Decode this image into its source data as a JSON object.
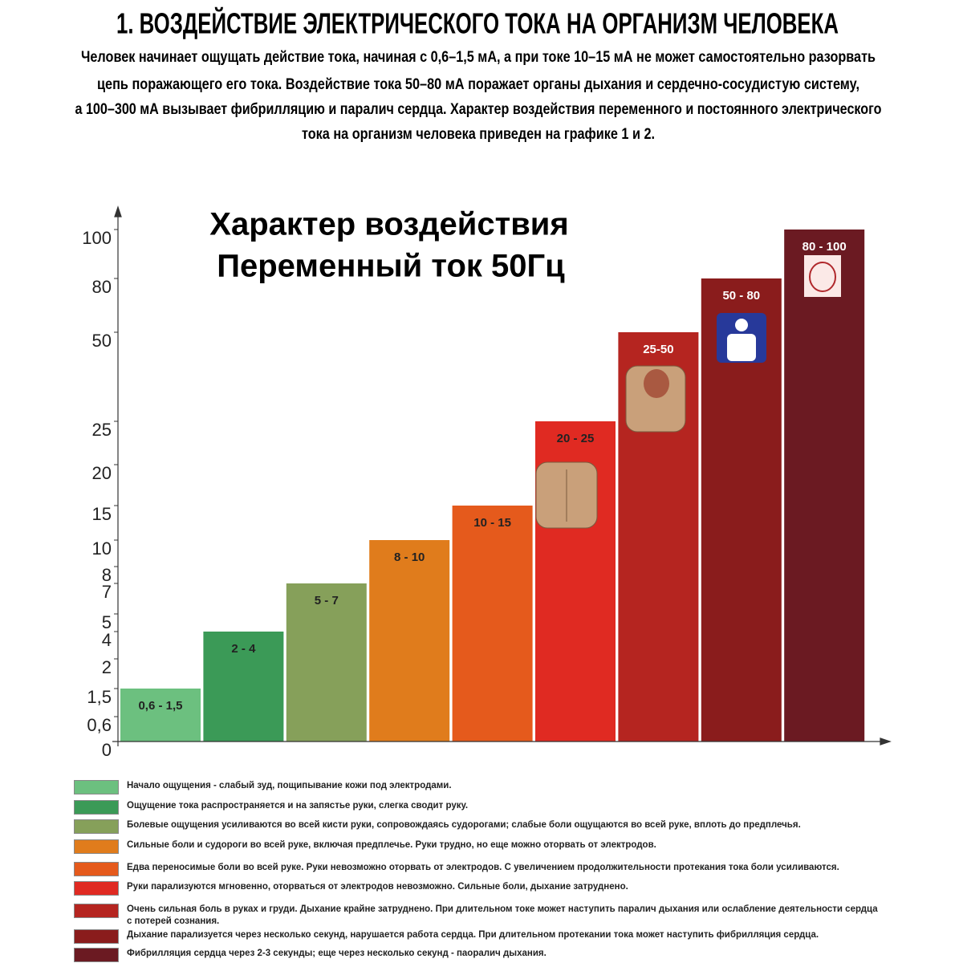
{
  "header": {
    "title": "1. ВОЗДЕЙСТВИЕ ЭЛЕКТРИЧЕСКОГО ТОКА НА ОРГАНИЗМ ЧЕЛОВЕКА",
    "lines": [
      "Человек начинает ощущать действие тока, начиная с 0,6–1,5 мА, а при токе 10–15 мА не может самостоятельно разорвать",
      "цепь поражающего его тока. Воздействие тока 50–80 мА поражает органы дыхания и сердечно-сосудистую систему,",
      "а 100–300 мА вызывает фибрилляцию и паралич сердца. Характер воздействия переменного и постоянного электрического",
      "тока на организм человека приведен на графике 1 и 2."
    ]
  },
  "chart_data": {
    "type": "bar",
    "title": [
      "Характер воздействия",
      "Переменный ток 50Гц"
    ],
    "categories": [
      "0,6 - 1,5",
      "2 - 4",
      "5 - 7",
      "8 - 10",
      "10 - 15",
      "20 - 25",
      "25-50",
      "50 - 80",
      "80 - 100"
    ],
    "values": [
      1.5,
      4,
      7,
      10,
      15,
      25,
      50,
      80,
      100
    ],
    "colors": [
      "#6cc07f",
      "#3b9a57",
      "#86a05a",
      "#e07c1c",
      "#e55a1c",
      "#e02a22",
      "#b52520",
      "#8a1c1c",
      "#6b1a22"
    ],
    "ylim": [
      0,
      100
    ],
    "yticks": [
      0,
      {
        "value": 0.6,
        "label": "0,6"
      },
      {
        "value": 1.5,
        "label": "1,5"
      },
      2,
      4,
      5,
      7,
      8,
      10,
      15,
      20,
      25,
      50,
      80,
      100
    ],
    "legend": [
      "Начало ощущения -  слабый зуд, пощипывание кожи под электродами.",
      "Ощущение тока распространяется и на запястье руки, слегка сводит руку.",
      "Болевые ощущения усиливаются во всей кисти руки, сопровождаясь судорогами; слабые боли ощущаются во всей руке, вплоть до предплечья.",
      "Сильные боли и судороги во всей руке, включая предплечье. Руки трудно, но еще можно оторвать от электродов.",
      "Едва переносимые боли во всей руке. Руки невозможно оторвать от электродов. С увеличением продолжительности протекания тока боли усиливаются.",
      "Руки парализуются мгновенно, оторваться от электродов невозможно. Сильные боли, дыхание затруднено.",
      "Очень сильная боль в руках и груди. Дыхание крайне затруднено. При длительном токе может наступить паралич дыхания или ослабление деятельности сердца с потерей сознания.",
      "Дыхание парализуется через несколько секунд, нарушается работа сердца. При длительном протекании тока может наступить фибрилляция сердца.",
      "Фибрилляция сердца через 2-3 секунды; еще через несколько секунд - паоралич дыхания."
    ]
  }
}
